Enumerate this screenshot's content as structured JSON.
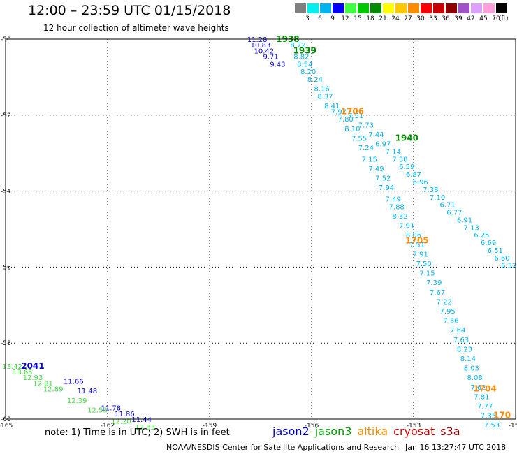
{
  "header": {
    "title": "12:00 – 23:59 UTC 01/15/2018",
    "subtitle": "12 hour collection of altimeter wave heights"
  },
  "footer": {
    "note": "note: 1) Time is in UTC; 2) SWH is in feet",
    "credit": "NOAA/NESDIS Center for Satellite Applications and Research",
    "timestamp": "Jan 16 13:27:47 UTC 2018"
  },
  "satellites": [
    {
      "name": "jason2",
      "color": "#0000cc"
    },
    {
      "name": "jason3",
      "color": "#009900"
    },
    {
      "name": "altika",
      "color": "#ff8c00"
    },
    {
      "name": "cryosat",
      "color": "#cc0000"
    },
    {
      "name": "s3a",
      "color": "#990000"
    }
  ],
  "legend": {
    "unit": "(ft)",
    "bins": [
      {
        "label": "3",
        "color": "#808080"
      },
      {
        "label": "6",
        "color": "#00f0f0"
      },
      {
        "label": "9",
        "color": "#00b4f0"
      },
      {
        "label": "12",
        "color": "#0000ff"
      },
      {
        "label": "15",
        "color": "#40ff40"
      },
      {
        "label": "18",
        "color": "#00c800"
      },
      {
        "label": "21",
        "color": "#008c00"
      },
      {
        "label": "24",
        "color": "#ffff00"
      },
      {
        "label": "27",
        "color": "#ffc800"
      },
      {
        "label": "30",
        "color": "#ff8c00"
      },
      {
        "label": "33",
        "color": "#ff0000"
      },
      {
        "label": "36",
        "color": "#c80000"
      },
      {
        "label": "39",
        "color": "#8c0000"
      },
      {
        "label": "42",
        "color": "#a050c8"
      },
      {
        "label": "45",
        "color": "#dca0ff"
      },
      {
        "label": "70",
        "color": "#ffa0dc"
      },
      {
        "label": "",
        "color": "#000000"
      }
    ]
  },
  "chart_data": {
    "type": "scatter",
    "xlim": [
      -165,
      -150
    ],
    "ylim": [
      -60,
      -50
    ],
    "x_ticks": [
      {
        "value": -165,
        "label": "-165"
      },
      {
        "value": -162,
        "label": "-162"
      },
      {
        "value": -159,
        "label": "-159"
      },
      {
        "value": -156,
        "label": "-156"
      },
      {
        "value": -153,
        "label": "-153"
      },
      {
        "value": -150,
        "label": "-150"
      }
    ],
    "y_ticks": [
      {
        "value": -50,
        "label": "-50"
      },
      {
        "value": -52,
        "label": "-52"
      },
      {
        "value": -54,
        "label": "-54"
      },
      {
        "value": -56,
        "label": "-56"
      },
      {
        "value": -58,
        "label": "-58"
      },
      {
        "value": -60,
        "label": "-60"
      }
    ],
    "grid": true,
    "time_labels": [
      {
        "text": "1938",
        "lon": -156.7,
        "lat": -50.0,
        "color": "#008c00"
      },
      {
        "text": "1939",
        "lon": -156.2,
        "lat": -50.3,
        "color": "#008c00"
      },
      {
        "text": "1940",
        "lon": -153.2,
        "lat": -52.6,
        "color": "#008c00"
      },
      {
        "text": "1706",
        "lon": -154.8,
        "lat": -51.9,
        "color": "#ff8c00"
      },
      {
        "text": "1705",
        "lon": -152.9,
        "lat": -55.3,
        "color": "#ff8c00"
      },
      {
        "text": "1704",
        "lon": -150.9,
        "lat": -59.2,
        "color": "#ff8c00"
      },
      {
        "text": "170",
        "lon": -150.4,
        "lat": -59.9,
        "color": "#ff8c00"
      },
      {
        "text": "2041",
        "lon": -164.2,
        "lat": -58.6,
        "color": "#0000cc"
      }
    ],
    "series": [
      {
        "color": "#0000cc",
        "points": [
          {
            "lon": -157.6,
            "lat": -50.0,
            "swh": "11.28"
          },
          {
            "lon": -157.5,
            "lat": -50.15,
            "swh": "10.83"
          },
          {
            "lon": -157.4,
            "lat": -50.3,
            "swh": "10.42"
          },
          {
            "lon": -157.2,
            "lat": -50.45,
            "swh": "9.71"
          },
          {
            "lon": -157.0,
            "lat": -50.65,
            "swh": "9.43"
          },
          {
            "lon": -163.0,
            "lat": -59.0,
            "swh": "11.66"
          },
          {
            "lon": -162.6,
            "lat": -59.25,
            "swh": "11.48"
          },
          {
            "lon": -161.9,
            "lat": -59.7,
            "swh": "11.78"
          },
          {
            "lon": -161.5,
            "lat": -59.85,
            "swh": "11.86"
          },
          {
            "lon": -161.0,
            "lat": -60.0,
            "swh": "11.44"
          }
        ]
      },
      {
        "color": "#40e040",
        "points": [
          {
            "lon": -164.8,
            "lat": -58.6,
            "swh": "13.42"
          },
          {
            "lon": -164.5,
            "lat": -58.75,
            "swh": "13.65"
          },
          {
            "lon": -164.2,
            "lat": -58.9,
            "swh": "12.93"
          },
          {
            "lon": -163.9,
            "lat": -59.05,
            "swh": "12.81"
          },
          {
            "lon": -163.6,
            "lat": -59.2,
            "swh": "12.89"
          },
          {
            "lon": -162.9,
            "lat": -59.5,
            "swh": "12.39"
          },
          {
            "lon": -162.3,
            "lat": -59.75,
            "swh": "12.53"
          },
          {
            "lon": -161.6,
            "lat": -60.05,
            "swh": "12.20"
          },
          {
            "lon": -160.9,
            "lat": -60.2,
            "swh": "12.33"
          }
        ]
      },
      {
        "color": "#00b4f0",
        "points": [
          {
            "lon": -156.4,
            "lat": -50.15,
            "swh": "8.72"
          },
          {
            "lon": -156.3,
            "lat": -50.45,
            "swh": "8.82"
          },
          {
            "lon": -156.2,
            "lat": -50.65,
            "swh": "8.54"
          },
          {
            "lon": -156.1,
            "lat": -50.85,
            "swh": "8.20"
          },
          {
            "lon": -155.9,
            "lat": -51.05,
            "swh": "8.24"
          },
          {
            "lon": -155.7,
            "lat": -51.3,
            "swh": "8.16"
          },
          {
            "lon": -155.6,
            "lat": -51.5,
            "swh": "8.37"
          },
          {
            "lon": -155.4,
            "lat": -51.75,
            "swh": "8.41"
          },
          {
            "lon": -155.2,
            "lat": -51.9,
            "swh": "7.97"
          },
          {
            "lon": -155.0,
            "lat": -52.1,
            "swh": "7.80"
          },
          {
            "lon": -154.8,
            "lat": -52.35,
            "swh": "8.10"
          },
          {
            "lon": -154.6,
            "lat": -52.6,
            "swh": "7.55"
          },
          {
            "lon": -154.4,
            "lat": -52.85,
            "swh": "7.24"
          },
          {
            "lon": -154.3,
            "lat": -53.15,
            "swh": "7.15"
          },
          {
            "lon": -154.1,
            "lat": -53.4,
            "swh": "7.49"
          },
          {
            "lon": -153.9,
            "lat": -53.65,
            "swh": "7.52"
          },
          {
            "lon": -153.8,
            "lat": -53.9,
            "swh": "7.94"
          },
          {
            "lon": -153.6,
            "lat": -54.2,
            "swh": "7.49"
          },
          {
            "lon": -153.5,
            "lat": -54.4,
            "swh": "7.88"
          },
          {
            "lon": -153.4,
            "lat": -54.65,
            "swh": "8.32"
          },
          {
            "lon": -153.2,
            "lat": -54.9,
            "swh": "7.91"
          },
          {
            "lon": -153.0,
            "lat": -55.15,
            "swh": "8.06"
          },
          {
            "lon": -152.9,
            "lat": -55.4,
            "swh": "7.51"
          },
          {
            "lon": -152.8,
            "lat": -55.65,
            "swh": "7.91"
          },
          {
            "lon": -152.7,
            "lat": -55.9,
            "swh": "7.50"
          },
          {
            "lon": -152.6,
            "lat": -56.15,
            "swh": "7.15"
          },
          {
            "lon": -152.4,
            "lat": -56.4,
            "swh": "7.39"
          },
          {
            "lon": -152.3,
            "lat": -56.65,
            "swh": "7.67"
          },
          {
            "lon": -152.1,
            "lat": -56.9,
            "swh": "7.22"
          },
          {
            "lon": -152.0,
            "lat": -57.15,
            "swh": "7.95"
          },
          {
            "lon": -151.9,
            "lat": -57.4,
            "swh": "7.56"
          },
          {
            "lon": -151.7,
            "lat": -57.65,
            "swh": "7.64"
          },
          {
            "lon": -151.6,
            "lat": -57.9,
            "swh": "7.63"
          },
          {
            "lon": -151.5,
            "lat": -58.15,
            "swh": "8.23"
          },
          {
            "lon": -151.4,
            "lat": -58.4,
            "swh": "8.14"
          },
          {
            "lon": -151.3,
            "lat": -58.65,
            "swh": "8.03"
          },
          {
            "lon": -151.2,
            "lat": -58.9,
            "swh": "8.08"
          },
          {
            "lon": -151.1,
            "lat": -59.15,
            "swh": "7.62"
          },
          {
            "lon": -151.0,
            "lat": -59.4,
            "swh": "7.81"
          },
          {
            "lon": -150.9,
            "lat": -59.65,
            "swh": "7.77"
          },
          {
            "lon": -150.8,
            "lat": -59.9,
            "swh": "7.35"
          },
          {
            "lon": -150.7,
            "lat": -60.15,
            "swh": "7.53"
          },
          {
            "lon": -154.7,
            "lat": -52.0,
            "swh": "7.51"
          },
          {
            "lon": -154.4,
            "lat": -52.25,
            "swh": "7.73"
          },
          {
            "lon": -154.1,
            "lat": -52.5,
            "swh": "7.44"
          },
          {
            "lon": -153.9,
            "lat": -52.75,
            "swh": "6.97"
          },
          {
            "lon": -153.6,
            "lat": -52.95,
            "swh": "7.14"
          },
          {
            "lon": -153.4,
            "lat": -53.15,
            "swh": "7.38"
          },
          {
            "lon": -153.2,
            "lat": -53.35,
            "swh": "6.59"
          },
          {
            "lon": -153.0,
            "lat": -53.55,
            "swh": "6.87"
          },
          {
            "lon": -152.8,
            "lat": -53.75,
            "swh": "6.96"
          },
          {
            "lon": -152.5,
            "lat": -53.95,
            "swh": "7.38"
          },
          {
            "lon": -152.3,
            "lat": -54.15,
            "swh": "7.10"
          },
          {
            "lon": -152.0,
            "lat": -54.35,
            "swh": "6.71"
          },
          {
            "lon": -151.8,
            "lat": -54.55,
            "swh": "6.77"
          },
          {
            "lon": -151.5,
            "lat": -54.75,
            "swh": "6.91"
          },
          {
            "lon": -151.3,
            "lat": -54.95,
            "swh": "7.13"
          },
          {
            "lon": -151.0,
            "lat": -55.15,
            "swh": "6.25"
          },
          {
            "lon": -150.8,
            "lat": -55.35,
            "swh": "6.69"
          },
          {
            "lon": -150.6,
            "lat": -55.55,
            "swh": "6.51"
          },
          {
            "lon": -150.4,
            "lat": -55.75,
            "swh": "6.60"
          },
          {
            "lon": -150.2,
            "lat": -55.95,
            "swh": "6.32"
          }
        ]
      }
    ]
  }
}
